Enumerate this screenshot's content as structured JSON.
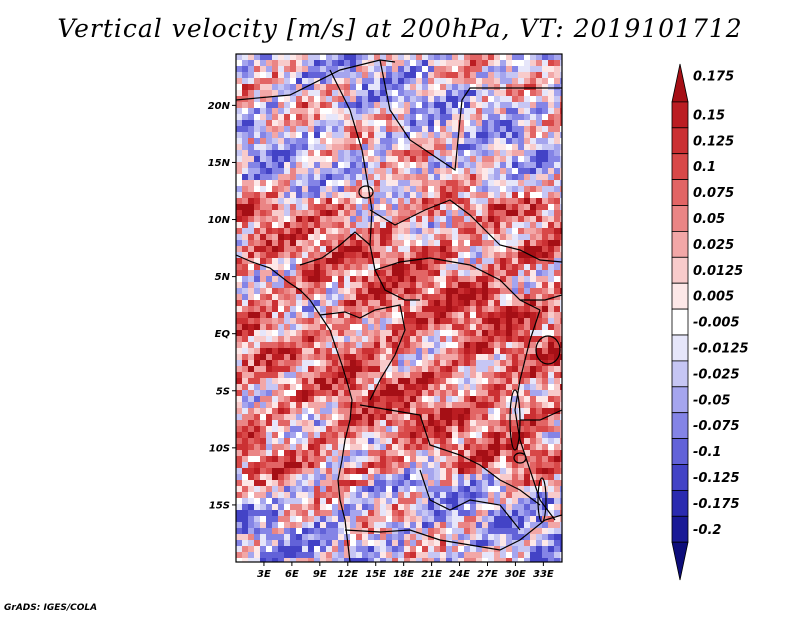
{
  "title": "Vertical velocity [m/s] at 200hPa, VT: 2019101712",
  "credit": "GrADS: IGES/COLA",
  "map": {
    "variable": "Vertical velocity",
    "units": "m/s",
    "level": "200hPa",
    "valid_time": "2019101712",
    "lat_range": [
      -20,
      24.5
    ],
    "lon_range": [
      0,
      35
    ],
    "lat_labels": [
      {
        "lat": 20,
        "text": "20N"
      },
      {
        "lat": 15,
        "text": "15N"
      },
      {
        "lat": 10,
        "text": "10N"
      },
      {
        "lat": 5,
        "text": "5N"
      },
      {
        "lat": 0,
        "text": "EQ"
      },
      {
        "lat": -5,
        "text": "5S"
      },
      {
        "lat": -10,
        "text": "10S"
      },
      {
        "lat": -15,
        "text": "15S"
      }
    ],
    "lon_labels": [
      {
        "lon": 3,
        "text": "3E"
      },
      {
        "lon": 6,
        "text": "6E"
      },
      {
        "lon": 9,
        "text": "9E"
      },
      {
        "lon": 12,
        "text": "12E"
      },
      {
        "lon": 15,
        "text": "15E"
      },
      {
        "lon": 18,
        "text": "18E"
      },
      {
        "lon": 21,
        "text": "21E"
      },
      {
        "lon": 24,
        "text": "24E"
      },
      {
        "lon": 27,
        "text": "27E"
      },
      {
        "lon": 30,
        "text": "30E"
      },
      {
        "lon": 33,
        "text": "33E"
      }
    ]
  },
  "colorbar": {
    "labels": [
      "0.175",
      "0.15",
      "0.125",
      "0.1",
      "0.075",
      "0.05",
      "0.025",
      "0.0125",
      "0.005",
      "-0.005",
      "-0.0125",
      "-0.025",
      "-0.05",
      "-0.075",
      "-0.1",
      "-0.125",
      "-0.175",
      "-0.2"
    ],
    "colors": [
      "#a50f15",
      "#bb1d22",
      "#cb3033",
      "#d84848",
      "#e26565",
      "#ea8585",
      "#f2a7a7",
      "#f8cbcb",
      "#fde8e8",
      "#ffffff",
      "#e6e6fa",
      "#c6c6f4",
      "#a5a5ee",
      "#8484e6",
      "#6262d8",
      "#4343c6",
      "#2b2bb0",
      "#1a1a96",
      "#0d0d7a"
    ]
  }
}
